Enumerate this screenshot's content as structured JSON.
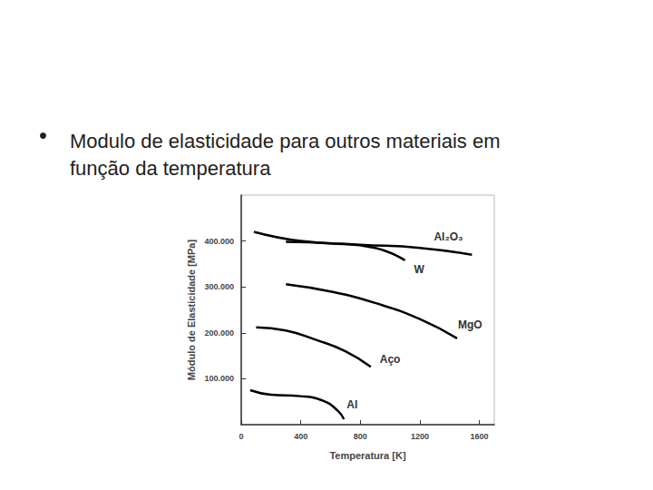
{
  "chart_data": {
    "type": "line",
    "title": "Modulo de elasticidade para outros materiais em função da temperatura",
    "x_label": "Temperatura [K]",
    "y_label": "Módulo de Elasticidade [MPa]",
    "xlim": [
      0,
      1700
    ],
    "xticks": [
      0,
      400,
      800,
      1200,
      1600
    ],
    "ylim": [
      0,
      500000
    ],
    "yticks": [
      {
        "value": 100000,
        "label": "100.000"
      },
      {
        "value": 200000,
        "label": "200.000"
      },
      {
        "value": 300000,
        "label": "300.000"
      },
      {
        "value": 400000,
        "label": "400.000"
      }
    ],
    "grid": false,
    "series": [
      {
        "name": "Al₂O₃",
        "color": "#000000",
        "x": [
          85,
          400,
          800,
          1200,
          1550
        ],
        "values": [
          420000,
          400000,
          392000,
          385000,
          370000
        ]
      },
      {
        "name": "W",
        "color": "#000000",
        "x": [
          300,
          600,
          900,
          1100
        ],
        "values": [
          398000,
          395000,
          385000,
          358000
        ]
      },
      {
        "name": "MgO",
        "color": "#000000",
        "x": [
          300,
          600,
          900,
          1200,
          1450
        ],
        "values": [
          306000,
          290000,
          265000,
          230000,
          188000
        ]
      },
      {
        "name": "Aço",
        "color": "#000000",
        "x": [
          100,
          300,
          500,
          700,
          870
        ],
        "values": [
          212000,
          205000,
          185000,
          160000,
          126000
        ]
      },
      {
        "name": "Al",
        "color": "#000000",
        "x": [
          60,
          200,
          400,
          550,
          650,
          690
        ],
        "values": [
          75000,
          65000,
          62000,
          52000,
          30000,
          12000
        ]
      }
    ]
  }
}
